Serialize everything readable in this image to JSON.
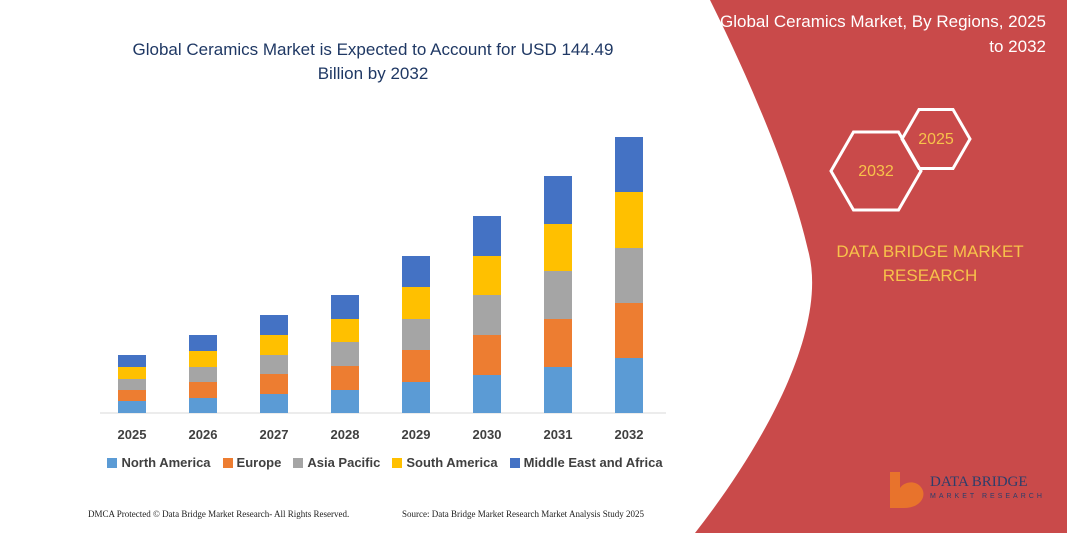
{
  "chart_data": {
    "type": "stacked-bar",
    "title": "Global Ceramics Market is Expected to Account for USD 144.49 Billion by 2032",
    "categories": [
      "2025",
      "2026",
      "2027",
      "2028",
      "2029",
      "2030",
      "2031",
      "2032"
    ],
    "series": [
      {
        "name": "North America",
        "color": "#5b9bd5",
        "values": [
          12,
          15,
          19,
          23,
          31,
          38,
          46,
          55
        ]
      },
      {
        "name": "Europe",
        "color": "#ed7d31",
        "values": [
          11,
          16,
          20,
          24,
          32,
          40,
          48,
          55
        ]
      },
      {
        "name": "Asia Pacific",
        "color": "#a5a5a5",
        "values": [
          11,
          15,
          19,
          24,
          31,
          40,
          48,
          55
        ]
      },
      {
        "name": "South America",
        "color": "#ffc000",
        "values": [
          12,
          16,
          20,
          23,
          32,
          39,
          47,
          56
        ]
      },
      {
        "name": "Middle East and Africa",
        "color": "#4472c4",
        "values": [
          12,
          16,
          20,
          24,
          31,
          40,
          48,
          55
        ]
      }
    ],
    "legend": "bottom"
  },
  "panel": {
    "title": "Global Ceramics Market, By Regions, 2025 to 2032",
    "hex_small": "2025",
    "hex_large": "2032",
    "brand": "DATA BRIDGE MARKET RESEARCH",
    "logo": "DATA BRIDGE",
    "logo_sub": "MARKET RESEARCH"
  },
  "footer": {
    "left": "DMCA Protected © Data Bridge Market Research- All Rights Reserved.",
    "right": "Source: Data Bridge Market Research Market Analysis Study 2025"
  }
}
